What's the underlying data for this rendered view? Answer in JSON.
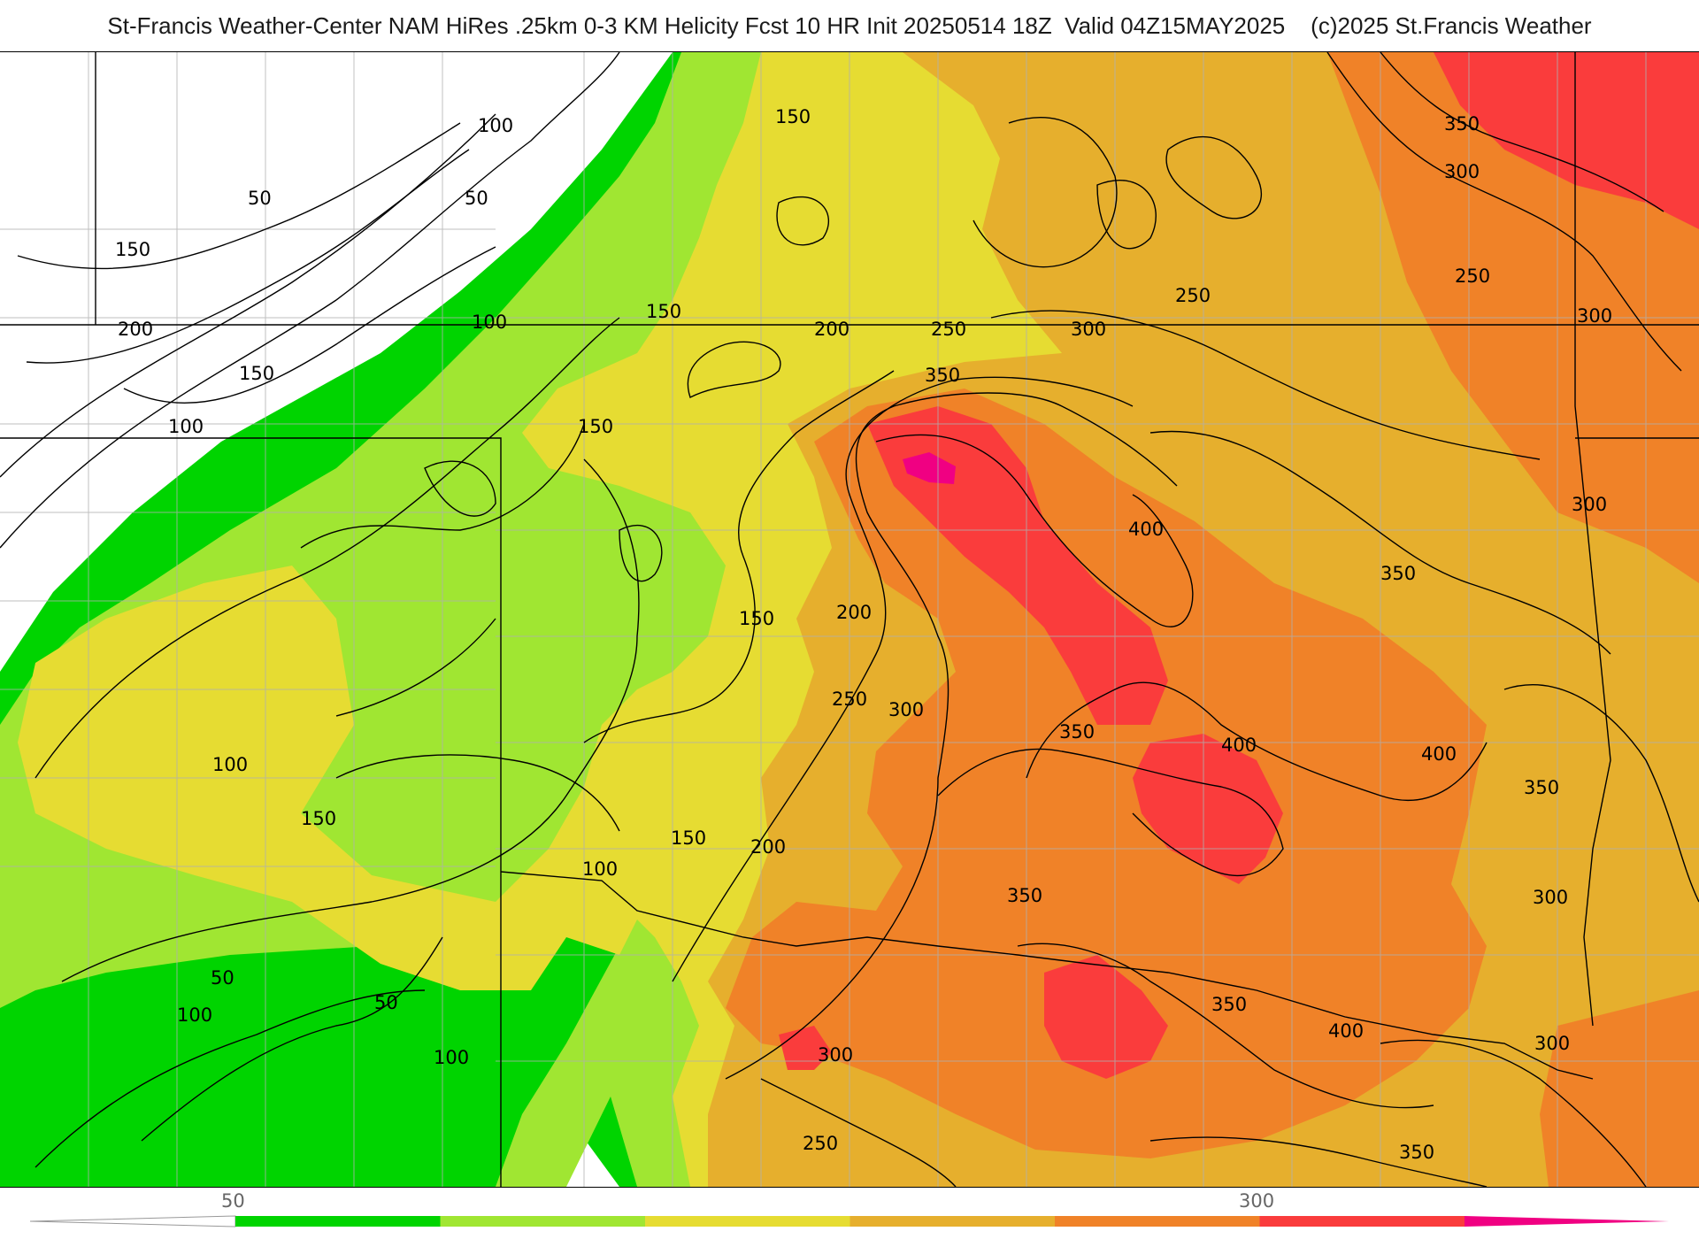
{
  "header": {
    "title": "St-Francis Weather-Center NAM HiRes .25km 0-3 KM Helicity Fcst 10 HR Init 20250514 18Z  Valid 04Z15MAY2025    (c)2025 St.Francis Weather"
  },
  "map": {
    "field": "0-3 km storm-relative helicity",
    "colors": {
      "lt50": "#ffffff",
      "b50_100": "#00d400",
      "b100_150": "#a0e632",
      "b150_200": "#e6dc32",
      "b200_250": "#e6af2d",
      "b250_300": "#f08228",
      "b300_350": "#fa3c3c",
      "gt350": "#f00082",
      "contour": "#000000",
      "boundary": "#000000",
      "county": "#b0b0b0"
    },
    "contour_labels": [
      {
        "id": "l1",
        "text": "100"
      },
      {
        "id": "l2",
        "text": "50"
      },
      {
        "id": "l3",
        "text": "50"
      },
      {
        "id": "l4",
        "text": "150"
      },
      {
        "id": "l5",
        "text": "200"
      },
      {
        "id": "l6",
        "text": "150"
      },
      {
        "id": "l7",
        "text": "100"
      },
      {
        "id": "l8",
        "text": "100"
      },
      {
        "id": "l9",
        "text": "150"
      },
      {
        "id": "l10",
        "text": "150"
      },
      {
        "id": "l11",
        "text": "150"
      },
      {
        "id": "l12",
        "text": "200"
      },
      {
        "id": "l13",
        "text": "250"
      },
      {
        "id": "l14",
        "text": "300"
      },
      {
        "id": "l15",
        "text": "350"
      },
      {
        "id": "l16",
        "text": "350"
      },
      {
        "id": "l17",
        "text": "300"
      },
      {
        "id": "l18",
        "text": "250"
      },
      {
        "id": "l19",
        "text": "250"
      },
      {
        "id": "l20",
        "text": "300"
      },
      {
        "id": "l21",
        "text": "400"
      },
      {
        "id": "l22",
        "text": "350"
      },
      {
        "id": "l23",
        "text": "300"
      },
      {
        "id": "l24",
        "text": "150"
      },
      {
        "id": "l25",
        "text": "200"
      },
      {
        "id": "l26",
        "text": "250"
      },
      {
        "id": "l27",
        "text": "300"
      },
      {
        "id": "l28",
        "text": "350"
      },
      {
        "id": "l29",
        "text": "400"
      },
      {
        "id": "l30",
        "text": "400"
      },
      {
        "id": "l31",
        "text": "350"
      },
      {
        "id": "l32",
        "text": "100"
      },
      {
        "id": "l33",
        "text": "150"
      },
      {
        "id": "l34",
        "text": "100"
      },
      {
        "id": "l35",
        "text": "150"
      },
      {
        "id": "l36",
        "text": "200"
      },
      {
        "id": "l37",
        "text": "350"
      },
      {
        "id": "l38",
        "text": "300"
      },
      {
        "id": "l39",
        "text": "50"
      },
      {
        "id": "l40",
        "text": "50"
      },
      {
        "id": "l41",
        "text": "100"
      },
      {
        "id": "l42",
        "text": "100"
      },
      {
        "id": "l43",
        "text": "300"
      },
      {
        "id": "l44",
        "text": "350"
      },
      {
        "id": "l45",
        "text": "400"
      },
      {
        "id": "l46",
        "text": "300"
      },
      {
        "id": "l47",
        "text": "250"
      },
      {
        "id": "l48",
        "text": "350"
      }
    ]
  },
  "legend": {
    "tick_labels": [
      "50",
      "300"
    ],
    "levels": [
      50,
      100,
      150,
      200,
      250,
      300,
      350
    ],
    "colors": [
      "#00d400",
      "#a0e632",
      "#e6dc32",
      "#e6af2d",
      "#f08228",
      "#fa3c3c",
      "#f00082"
    ]
  }
}
